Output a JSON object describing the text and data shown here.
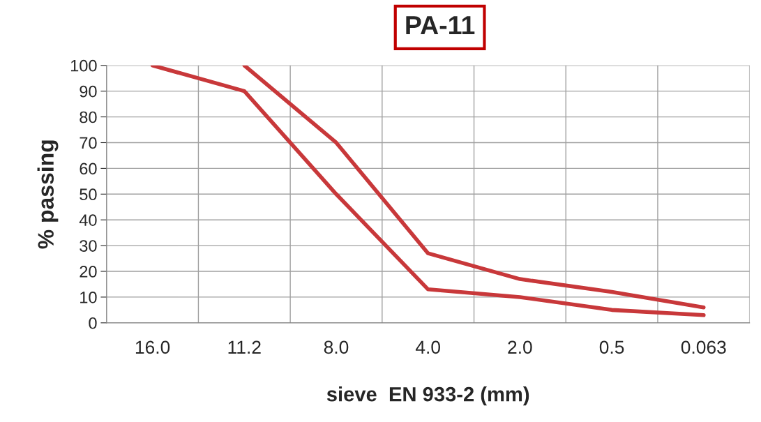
{
  "chart_data": {
    "type": "line",
    "title": "PA-11",
    "xlabel": "sieve  EN 933-2 (mm)",
    "ylabel": "% passing",
    "categories": [
      "16.0",
      "11.2",
      "8.0",
      "4.0",
      "2.0",
      "0.5",
      "0.063"
    ],
    "series": [
      {
        "color": "#c8383a",
        "values": [
          null,
          100,
          70,
          27,
          17,
          12,
          6
        ]
      },
      {
        "color": "#c8383a",
        "values": [
          100,
          90,
          50,
          13,
          10,
          5,
          3
        ]
      }
    ],
    "ylim": [
      0,
      100
    ],
    "yticks": [
      0,
      10,
      20,
      30,
      40,
      50,
      60,
      70,
      80,
      90,
      100
    ],
    "grid": true,
    "legend": false,
    "marker": "none",
    "line_style": "solid"
  }
}
